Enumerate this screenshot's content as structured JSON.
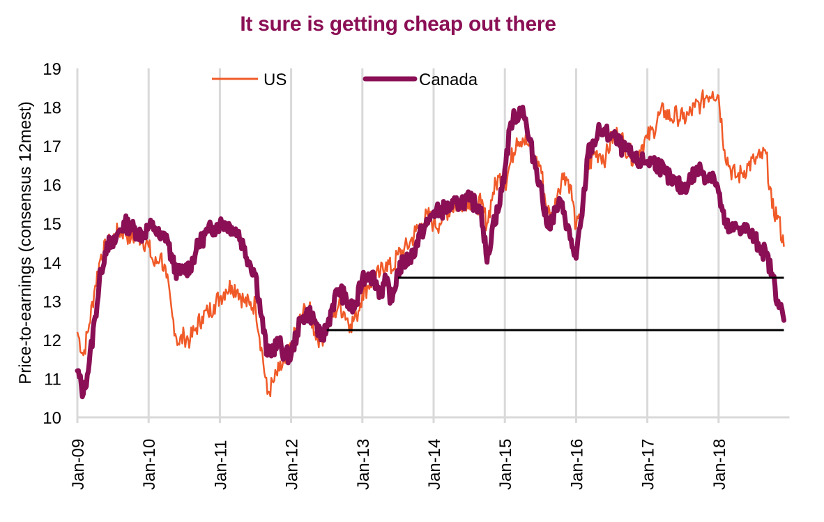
{
  "chart_data": {
    "type": "line",
    "title": "It sure  is getting cheap out there",
    "xlabel": "",
    "ylabel": "Price-to-earnings (consensus 12mest)",
    "ylim": [
      10,
      19
    ],
    "yticks": [
      "10",
      "11",
      "12",
      "13",
      "14",
      "15",
      "16",
      "17",
      "18",
      "19"
    ],
    "xlim": [
      "2009-01",
      "2018-12"
    ],
    "xticks": [
      "Jan-09",
      "Jan-10",
      "Jan-11",
      "Jan-12",
      "Jan-13",
      "Jan-14",
      "Jan-15",
      "Jan-16",
      "Jan-17",
      "Jan-18"
    ],
    "grid": "vertical",
    "legend": {
      "placement": "top-center",
      "entries": [
        "US",
        "Canada"
      ]
    },
    "colors": {
      "US": "#f05a28",
      "Canada": "#8a0f55",
      "reference": "#000000",
      "grid": "#d9d9d9",
      "title": "#8a0f55"
    },
    "x": [
      "2009-01",
      "2009-02",
      "2009-03",
      "2009-04",
      "2009-05",
      "2009-06",
      "2009-07",
      "2009-08",
      "2009-09",
      "2009-10",
      "2009-11",
      "2009-12",
      "2010-01",
      "2010-02",
      "2010-03",
      "2010-04",
      "2010-05",
      "2010-06",
      "2010-07",
      "2010-08",
      "2010-09",
      "2010-10",
      "2010-11",
      "2010-12",
      "2011-01",
      "2011-02",
      "2011-03",
      "2011-04",
      "2011-05",
      "2011-06",
      "2011-07",
      "2011-08",
      "2011-09",
      "2011-10",
      "2011-11",
      "2011-12",
      "2012-01",
      "2012-02",
      "2012-03",
      "2012-04",
      "2012-05",
      "2012-06",
      "2012-07",
      "2012-08",
      "2012-09",
      "2012-10",
      "2012-11",
      "2012-12",
      "2013-01",
      "2013-02",
      "2013-03",
      "2013-04",
      "2013-05",
      "2013-06",
      "2013-07",
      "2013-08",
      "2013-09",
      "2013-10",
      "2013-11",
      "2013-12",
      "2014-01",
      "2014-02",
      "2014-03",
      "2014-04",
      "2014-05",
      "2014-06",
      "2014-07",
      "2014-08",
      "2014-09",
      "2014-10",
      "2014-11",
      "2014-12",
      "2015-01",
      "2015-02",
      "2015-03",
      "2015-04",
      "2015-05",
      "2015-06",
      "2015-07",
      "2015-08",
      "2015-09",
      "2015-10",
      "2015-11",
      "2015-12",
      "2016-01",
      "2016-02",
      "2016-03",
      "2016-04",
      "2016-05",
      "2016-06",
      "2016-07",
      "2016-08",
      "2016-09",
      "2016-10",
      "2016-11",
      "2016-12",
      "2017-01",
      "2017-02",
      "2017-03",
      "2017-04",
      "2017-05",
      "2017-06",
      "2017-07",
      "2017-08",
      "2017-09",
      "2017-10",
      "2017-11",
      "2017-12",
      "2018-01",
      "2018-02",
      "2018-03",
      "2018-04",
      "2018-05",
      "2018-06",
      "2018-07",
      "2018-08",
      "2018-09",
      "2018-10",
      "2018-11",
      "2018-12"
    ],
    "series": [
      {
        "name": "US",
        "values": [
          12.2,
          11.6,
          12.4,
          13.4,
          14.2,
          14.4,
          14.6,
          14.8,
          14.8,
          14.6,
          14.7,
          14.6,
          14.4,
          13.9,
          14.2,
          13.6,
          12.6,
          11.9,
          12.1,
          12.0,
          12.3,
          12.6,
          12.7,
          12.9,
          13.1,
          13.3,
          13.4,
          13.3,
          13.0,
          12.9,
          12.9,
          11.8,
          10.6,
          10.9,
          11.2,
          11.4,
          11.8,
          12.3,
          12.7,
          12.8,
          12.2,
          12.0,
          12.3,
          12.6,
          12.9,
          12.7,
          12.4,
          12.6,
          13.2,
          13.4,
          13.6,
          13.7,
          14.0,
          13.8,
          14.2,
          14.3,
          14.5,
          14.8,
          15.0,
          15.2,
          15.0,
          15.0,
          15.3,
          15.4,
          15.5,
          15.6,
          15.6,
          15.5,
          15.5,
          15.0,
          15.8,
          16.2,
          16.0,
          16.6,
          17.2,
          17.2,
          17.0,
          16.6,
          16.5,
          15.4,
          15.1,
          15.9,
          16.3,
          16.0,
          14.9,
          15.1,
          16.4,
          16.8,
          16.8,
          16.7,
          17.2,
          17.3,
          17.1,
          16.8,
          16.7,
          17.0,
          17.2,
          17.4,
          17.8,
          17.9,
          17.7,
          17.8,
          17.7,
          17.8,
          18.0,
          18.1,
          18.3,
          18.4,
          18.3,
          16.9,
          16.4,
          16.2,
          16.3,
          16.5,
          16.6,
          16.7,
          16.8,
          15.4,
          15.2,
          14.4
        ]
      },
      {
        "name": "Canada",
        "values": [
          11.2,
          10.6,
          11.4,
          12.6,
          13.8,
          14.5,
          14.4,
          14.8,
          15.0,
          14.9,
          14.8,
          14.7,
          14.9,
          14.9,
          14.6,
          14.7,
          14.0,
          13.7,
          13.8,
          13.9,
          14.3,
          14.6,
          14.8,
          14.9,
          15.0,
          15.0,
          14.9,
          14.8,
          14.4,
          14.0,
          13.7,
          12.6,
          11.6,
          11.8,
          11.9,
          11.6,
          11.6,
          12.2,
          12.6,
          12.7,
          12.5,
          12.0,
          12.3,
          12.9,
          13.3,
          13.1,
          12.8,
          12.9,
          13.6,
          13.7,
          13.6,
          13.2,
          13.5,
          13.0,
          13.8,
          14.0,
          14.1,
          14.4,
          14.8,
          15.0,
          15.3,
          15.3,
          15.4,
          15.4,
          15.5,
          15.6,
          15.6,
          15.5,
          15.4,
          14.0,
          15.0,
          15.4,
          16.4,
          17.6,
          17.8,
          18.0,
          17.2,
          16.6,
          16.0,
          15.0,
          15.1,
          15.5,
          15.3,
          14.6,
          14.1,
          15.2,
          16.8,
          17.1,
          17.4,
          17.3,
          17.3,
          17.1,
          16.9,
          16.8,
          16.6,
          16.6,
          16.6,
          16.6,
          16.5,
          16.3,
          16.1,
          16.0,
          15.9,
          16.1,
          16.3,
          16.4,
          16.2,
          16.3,
          15.8,
          15.0,
          14.8,
          14.9,
          14.9,
          14.8,
          14.6,
          14.4,
          14.2,
          13.7,
          13.0,
          12.5
        ]
      }
    ],
    "reference_lines": [
      {
        "value": 13.6,
        "from": "2013-07",
        "to": "2018-12"
      },
      {
        "value": 12.25,
        "from": "2012-07",
        "to": "2018-12"
      }
    ]
  }
}
